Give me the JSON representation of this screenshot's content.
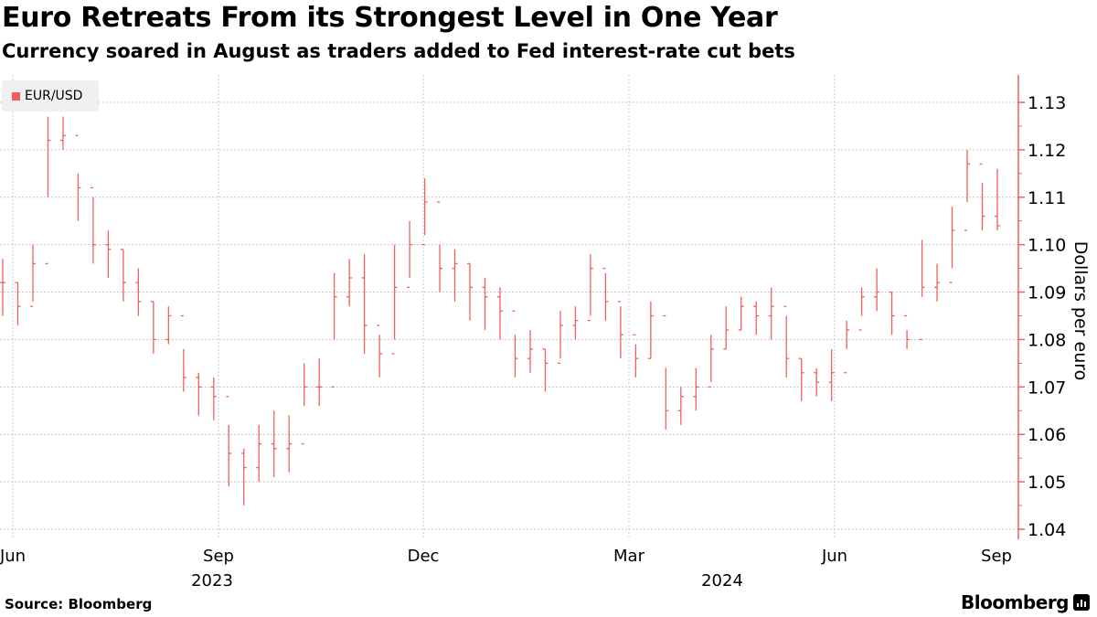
{
  "header": {
    "title": "Euro Retreats From its Strongest Level in One Year",
    "subtitle": "Currency soared in August as traders added to Fed interest-rate cut bets"
  },
  "footer": {
    "source": "Source: Bloomberg",
    "logo": "Bloomberg"
  },
  "colors": {
    "series": "#f25f5c",
    "axis": "#f25f5c",
    "grid": "#c8c8c8"
  },
  "chart_data": {
    "type": "ohlc",
    "title": "Euro Retreats From its Strongest Level in One Year",
    "subtitle": "Currency soared in August as traders added to Fed interest-rate cut bets",
    "legend": {
      "entries": [
        "EUR/USD"
      ],
      "placement": "top-left"
    },
    "ylabel": "Dollars per euro",
    "ylim": [
      1.037,
      1.136
    ],
    "yticks": [
      "1.04",
      "1.05",
      "1.06",
      "1.07",
      "1.08",
      "1.09",
      "1.10",
      "1.11",
      "1.12",
      "1.13"
    ],
    "xticks": [
      "Jun",
      "Sep",
      "Dec",
      "Mar",
      "Jun",
      "Sep"
    ],
    "xyears": [
      "2023",
      "2024"
    ],
    "grid": true,
    "frequency": "weekly (approx.)",
    "series": [
      {
        "name": "EUR/USD",
        "high": [
          1.097,
          1.092,
          1.1,
          1.127,
          1.127,
          1.115,
          1.11,
          1.103,
          1.099,
          1.095,
          1.088,
          1.087,
          1.078,
          1.073,
          1.072,
          1.062,
          1.057,
          1.062,
          1.065,
          1.064,
          1.075,
          1.076,
          1.094,
          1.097,
          1.098,
          1.081,
          1.1,
          1.105,
          1.114,
          1.1,
          1.099,
          1.096,
          1.093,
          1.091,
          1.081,
          1.082,
          1.078,
          1.086,
          1.087,
          1.098,
          1.094,
          1.087,
          1.079,
          1.088,
          1.074,
          1.07,
          1.074,
          1.081,
          1.087,
          1.089,
          1.088,
          1.091,
          1.085,
          1.076,
          1.074,
          1.078,
          1.084,
          1.091,
          1.095,
          1.09,
          1.082,
          1.101,
          1.096,
          1.108,
          1.12,
          1.113,
          1.116
        ],
        "low": [
          1.085,
          1.083,
          1.088,
          1.11,
          1.12,
          1.105,
          1.096,
          1.093,
          1.088,
          1.085,
          1.077,
          1.079,
          1.069,
          1.064,
          1.063,
          1.049,
          1.045,
          1.05,
          1.051,
          1.052,
          1.066,
          1.066,
          1.08,
          1.087,
          1.077,
          1.072,
          1.08,
          1.093,
          1.102,
          1.09,
          1.088,
          1.084,
          1.082,
          1.08,
          1.072,
          1.073,
          1.069,
          1.076,
          1.08,
          1.085,
          1.084,
          1.076,
          1.072,
          1.076,
          1.061,
          1.062,
          1.065,
          1.071,
          1.078,
          1.082,
          1.081,
          1.08,
          1.072,
          1.067,
          1.068,
          1.067,
          1.078,
          1.085,
          1.086,
          1.081,
          1.078,
          1.089,
          1.088,
          1.095,
          1.109,
          1.103,
          1.103
        ],
        "close": [
          1.092,
          1.087,
          1.096,
          1.122,
          1.123,
          1.112,
          1.1,
          1.099,
          1.092,
          1.088,
          1.08,
          1.085,
          1.072,
          1.07,
          1.068,
          1.056,
          1.053,
          1.058,
          1.057,
          1.058,
          1.07,
          1.07,
          1.089,
          1.093,
          1.083,
          1.077,
          1.091,
          1.1,
          1.109,
          1.095,
          1.096,
          1.091,
          1.089,
          1.086,
          1.076,
          1.078,
          1.075,
          1.083,
          1.084,
          1.095,
          1.088,
          1.081,
          1.076,
          1.085,
          1.065,
          1.068,
          1.07,
          1.078,
          1.082,
          1.087,
          1.085,
          1.087,
          1.076,
          1.073,
          1.071,
          1.073,
          1.082,
          1.089,
          1.09,
          1.085,
          1.08,
          1.091,
          1.092,
          1.103,
          1.117,
          1.106,
          1.104
        ]
      }
    ]
  }
}
